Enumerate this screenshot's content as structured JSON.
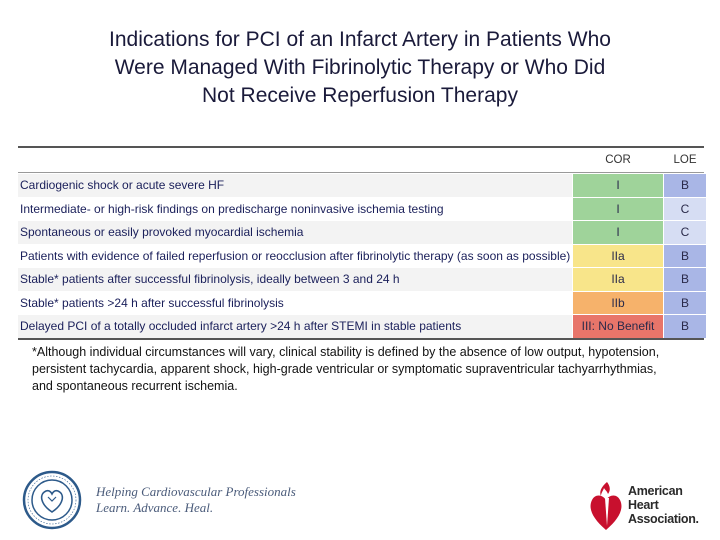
{
  "title": {
    "line1": "Indications for PCI of an Infarct Artery in Patients Who",
    "line2": "Were Managed With Fibrinolytic Therapy or Who Did",
    "line3": "Not Receive Reperfusion Therapy"
  },
  "table": {
    "headers": {
      "indication": "",
      "cor": "COR",
      "loe": "LOE"
    },
    "rows": [
      {
        "indication": "Cardiogenic shock or acute severe HF",
        "cor": "I",
        "loe": "B",
        "cor_color": "#9fd39a",
        "loe_color": "#a9b6e6"
      },
      {
        "indication": "Intermediate- or high-risk findings on predischarge noninvasive ischemia testing",
        "cor": "I",
        "loe": "C",
        "cor_color": "#9fd39a",
        "loe_color": "#d6ddf3"
      },
      {
        "indication": "Spontaneous or easily provoked myocardial ischemia",
        "cor": "I",
        "loe": "C",
        "cor_color": "#9fd39a",
        "loe_color": "#d6ddf3"
      },
      {
        "indication": "Patients with evidence of failed reperfusion or reocclusion after fibrinolytic therapy (as soon as possible)",
        "cor": "IIa",
        "loe": "B",
        "cor_color": "#f8e58a",
        "loe_color": "#a9b6e6"
      },
      {
        "indication": "Stable* patients after successful fibrinolysis, ideally between 3 and 24 h",
        "cor": "IIa",
        "loe": "B",
        "cor_color": "#f8e58a",
        "loe_color": "#a9b6e6"
      },
      {
        "indication": "Stable* patients >24 h after successful fibrinolysis",
        "cor": "IIb",
        "loe": "B",
        "cor_color": "#f6b26b",
        "loe_color": "#a9b6e6"
      },
      {
        "indication": "Delayed PCI of a totally occluded infarct artery >24 h after STEMI in stable patients",
        "cor": "III: No Benefit",
        "loe": "B",
        "cor_color": "#e8756a",
        "loe_color": "#a9b6e6"
      }
    ]
  },
  "footnote": "*Although individual circumstances will vary, clinical stability is defined by the absence of low output, hypotension, persistent tachycardia, apparent shock, high-grade ventricular or symptomatic supraventricular tachyarrhythmias, and spontaneous recurrent ischemia.",
  "footer": {
    "acc_tagline_line1": "Helping Cardiovascular Professionals",
    "acc_tagline_line2": "Learn. Advance. Heal.",
    "aha_line1": "American",
    "aha_line2": "Heart",
    "aha_line3": "Association."
  },
  "icons": {
    "acc_logo": "acc-seal-icon",
    "aha_logo": "aha-heart-torch-icon"
  }
}
